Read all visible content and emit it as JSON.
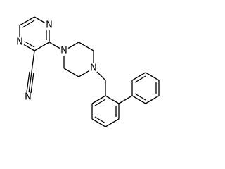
{
  "atoms": [
    {
      "label": "N"
    },
    {
      "label": "N"
    },
    {
      "label": "N"
    },
    {
      "label": "N"
    },
    {
      "label": "N"
    }
  ]
}
